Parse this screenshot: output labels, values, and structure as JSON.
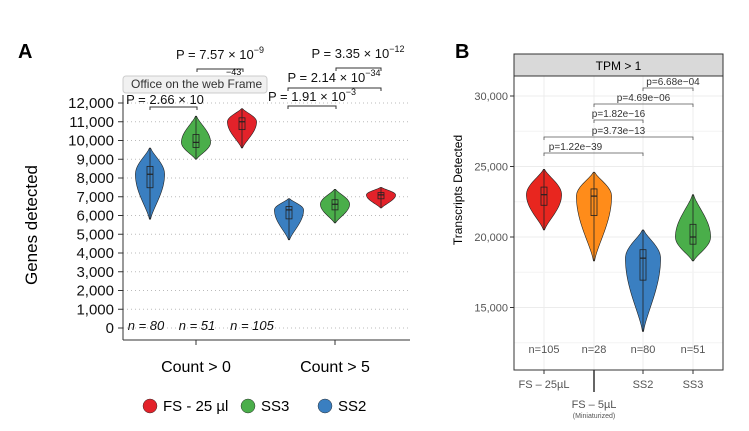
{
  "panels": {
    "a": "A",
    "b": "B"
  },
  "tooltip": "Office on the web Frame",
  "chart_data": [
    {
      "type": "violin",
      "ylabel": "Genes detected",
      "ylim": [
        0,
        12000
      ],
      "yticks": [
        0,
        1000,
        2000,
        3000,
        4000,
        5000,
        6000,
        7000,
        8000,
        9000,
        10000,
        11000,
        12000
      ],
      "ytick_labels": [
        "0",
        "1,000",
        "2,000",
        "3,000",
        "4,000",
        "5,000",
        "6,000",
        "7,000",
        "8,000",
        "9,000",
        "10,000",
        "11,000",
        "12,000"
      ],
      "categories": [
        "Count > 0",
        "Count > 5"
      ],
      "grid": "horizontal dotted",
      "legend_position": "bottom",
      "series": [
        {
          "name": "SS2",
          "color": "#3a7fc1",
          "n": "n = 80",
          "values": [
            {
              "min": 5800,
              "median": 8200,
              "max": 9600
            },
            {
              "min": 4700,
              "median": 6300,
              "max": 6900
            }
          ]
        },
        {
          "name": "SS3",
          "color": "#4aae4a",
          "n": "n = 51",
          "values": [
            {
              "min": 9000,
              "median": 9900,
              "max": 11300
            },
            {
              "min": 5600,
              "median": 6600,
              "max": 7400
            }
          ]
        },
        {
          "name": "FS - 25 µl",
          "color": "#e3222a",
          "n": "n = 105",
          "values": [
            {
              "min": 9600,
              "median": 11000,
              "max": 11700
            },
            {
              "min": 6400,
              "median": 7100,
              "max": 7500
            }
          ]
        }
      ],
      "annotations": [
        {
          "text": "P = 7.57 × 10",
          "exp": "−9"
        },
        {
          "text": "",
          "exp": "−43"
        },
        {
          "text": "P = 2.66 × 10",
          "exp": ""
        },
        {
          "text": "P = 3.35 × 10",
          "exp": "−12"
        },
        {
          "text": "P = 2.14 × 10",
          "exp": "−34"
        },
        {
          "text": "P = 1.91 × 10",
          "exp": "−3"
        }
      ],
      "legend": [
        "FS - 25 µl",
        "SS3",
        "SS2"
      ]
    },
    {
      "type": "violin",
      "facet": "TPM > 1",
      "ylabel": "Transcripts Detected",
      "yticks": [
        15000,
        20000,
        25000,
        30000
      ],
      "ytick_labels": [
        "15,000",
        "20,000",
        "25,000",
        "30,000"
      ],
      "categories": [
        "FS – 25µL",
        "FS – 5µL",
        "SS2",
        "SS3"
      ],
      "category_note": "(Miniaturized)",
      "colors": [
        "#e8261f",
        "#ff8c1a",
        "#3a7fc1",
        "#4aae4a"
      ],
      "values": [
        {
          "min": 20500,
          "median": 23000,
          "max": 24800
        },
        {
          "min": 18300,
          "median": 22900,
          "max": 24600
        },
        {
          "min": 13300,
          "median": 18500,
          "max": 20500
        },
        {
          "min": 18300,
          "median": 20000,
          "max": 23000
        }
      ],
      "n": [
        "n=105",
        "n=28",
        "n=80",
        "n=51"
      ],
      "comparisons": [
        {
          "text": "p=6.68e−04",
          "from": "SS2",
          "to": "SS3"
        },
        {
          "text": "p=4.69e−06",
          "from": "FS – 5µL",
          "to": "SS3"
        },
        {
          "text": "p=1.82e−16",
          "from": "FS – 5µL",
          "to": "SS2"
        },
        {
          "text": "p=3.73e−13",
          "from": "FS – 25µL",
          "to": "SS3"
        },
        {
          "text": "p=1.22e−39",
          "from": "FS – 25µL",
          "to": "SS2"
        }
      ]
    }
  ]
}
